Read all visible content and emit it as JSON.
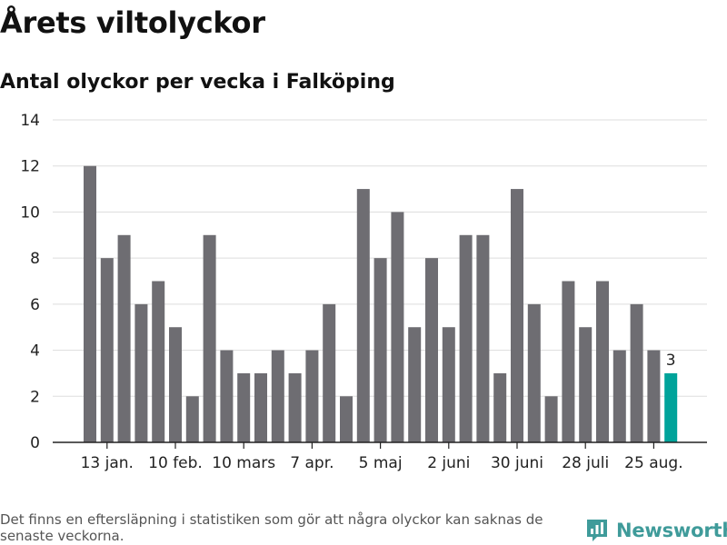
{
  "title": "Årets viltolyckor",
  "subtitle": "Antal olyckor per vecka i Falköping",
  "footnote": "Det finns en eftersläpning i statistiken som gör att några olyckor kan saknas de senaste veckorna.",
  "brand": {
    "name": "Newsworthy",
    "icon": "newsworthy-logo-icon",
    "color": "#3f9b9a"
  },
  "chart_data": {
    "type": "bar",
    "title": "",
    "xlabel": "",
    "ylabel": "",
    "ylim": [
      0,
      14
    ],
    "yticks": [
      0,
      2,
      4,
      6,
      8,
      10,
      12,
      14
    ],
    "grid": true,
    "values": [
      12,
      8,
      9,
      6,
      7,
      5,
      2,
      9,
      4,
      3,
      3,
      4,
      3,
      4,
      6,
      2,
      11,
      8,
      10,
      5,
      8,
      5,
      9,
      9,
      3,
      11,
      6,
      2,
      7,
      5,
      7,
      4,
      6,
      4,
      3
    ],
    "xticks": [
      {
        "index": 1,
        "label": "13 jan."
      },
      {
        "index": 5,
        "label": "10 feb."
      },
      {
        "index": 9,
        "label": "10 mars"
      },
      {
        "index": 13,
        "label": "7 apr."
      },
      {
        "index": 17,
        "label": "5 maj"
      },
      {
        "index": 21,
        "label": "2 juni"
      },
      {
        "index": 25,
        "label": "30 juni"
      },
      {
        "index": 29,
        "label": "28 juli"
      },
      {
        "index": 33,
        "label": "25 aug."
      }
    ],
    "highlight": {
      "index": 34,
      "label": "3"
    },
    "colors": {
      "bar": "#6e6d72",
      "highlight": "#00a39a",
      "grid": "#dddddd",
      "axis": "#222222"
    }
  }
}
